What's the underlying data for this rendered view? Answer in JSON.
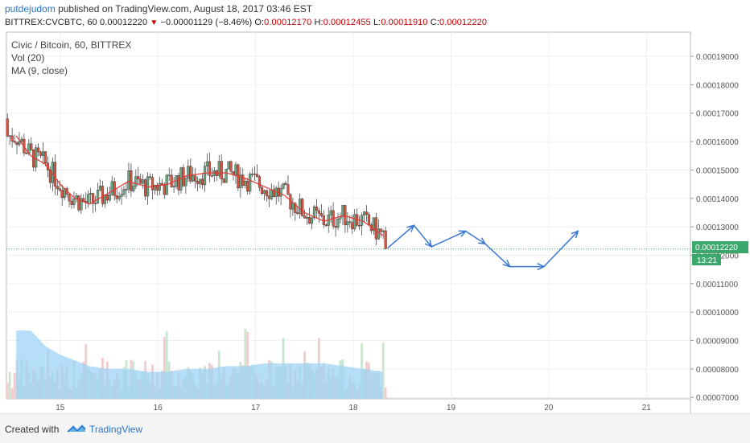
{
  "header": {
    "username": "putdejudom",
    "published": "published on TradingView.com, August 18, 2017 03:46 EST"
  },
  "ohlc": {
    "symbol": "BITTREX:CVCBTC, 60",
    "last": "0.00012220",
    "change": "−0.00001129 (−8.46%)",
    "o_label": "O:",
    "o": "0.00012170",
    "h_label": "H:",
    "h": "0.00012455",
    "l_label": "L:",
    "l": "0.00011910",
    "c_label": "C:",
    "c": "0.00012220"
  },
  "legend": {
    "title": "Civic / Bitcoin, 60, BITTREX",
    "vol": "Vol (20)",
    "ma": "MA (9, close)"
  },
  "price_badge": "0.00012220",
  "time_badge": "13:21",
  "footer": {
    "created": "Created with",
    "brand": "TradingView"
  },
  "colors": {
    "up": "#6ba583",
    "down": "#d75442",
    "ma": "#e53935",
    "projection": "#3a78d2",
    "volume": "#9fd3f5",
    "badge": "#3aa86b"
  },
  "chart_data": {
    "type": "candlestick",
    "title": "Civic / Bitcoin, 60, BITTREX",
    "x_ticks": [
      "15",
      "16",
      "17",
      "18",
      "19",
      "20",
      "21"
    ],
    "y_ticks": [
      "0.00007000",
      "0.00008000",
      "0.00009000",
      "0.00010000",
      "0.00011000",
      "0.00012000",
      "0.00013000",
      "0.00014000",
      "0.00015000",
      "0.00016000",
      "0.00017000",
      "0.00018000",
      "0.00019000"
    ],
    "ylim": [
      6.95e-05,
      0.0001985
    ],
    "xlim": [
      14.45,
      21.45
    ],
    "series": [
      {
        "name": "MA (9, close)",
        "x": [
          14.55,
          14.7,
          14.85,
          15.0,
          15.15,
          15.3,
          15.5,
          15.7,
          15.9,
          16.1,
          16.3,
          16.5,
          16.7,
          16.9,
          17.1,
          17.3,
          17.5,
          17.7,
          17.9,
          18.1,
          18.3
        ],
        "values": [
          0.000162,
          0.000155,
          0.000152,
          0.000145,
          0.00014,
          0.000138,
          0.000142,
          0.000146,
          0.000144,
          0.000145,
          0.000148,
          0.000149,
          0.000149,
          0.000147,
          0.000144,
          0.000141,
          0.000135,
          0.000132,
          0.000134,
          0.000132,
          0.000127
        ]
      },
      {
        "name": "Vol (20)",
        "x": [
          14.55,
          14.7,
          14.85,
          15.0,
          15.15,
          15.3,
          15.5,
          15.7,
          15.9,
          16.1,
          16.3,
          16.5,
          16.7,
          16.9,
          17.1,
          17.3,
          17.5,
          17.7,
          17.9,
          18.1,
          18.3
        ],
        "values": [
          9.35e-05,
          9.35e-05,
          8.8e-05,
          8.5e-05,
          8.3e-05,
          8.1e-05,
          8e-05,
          8e-05,
          7.9e-05,
          7.9e-05,
          8e-05,
          8e-05,
          8.1e-05,
          8.1e-05,
          8.2e-05,
          8.2e-05,
          8.2e-05,
          8.2e-05,
          8.1e-05,
          8e-05,
          7.9e-05
        ]
      }
    ],
    "projection_path": [
      [
        18.35,
        0.0001225
      ],
      [
        18.62,
        0.0001305
      ],
      [
        18.8,
        0.000123
      ],
      [
        19.15,
        0.0001285
      ],
      [
        19.35,
        0.000124
      ],
      [
        19.6,
        0.000116
      ],
      [
        19.95,
        0.000116
      ],
      [
        20.3,
        0.0001285
      ]
    ]
  }
}
